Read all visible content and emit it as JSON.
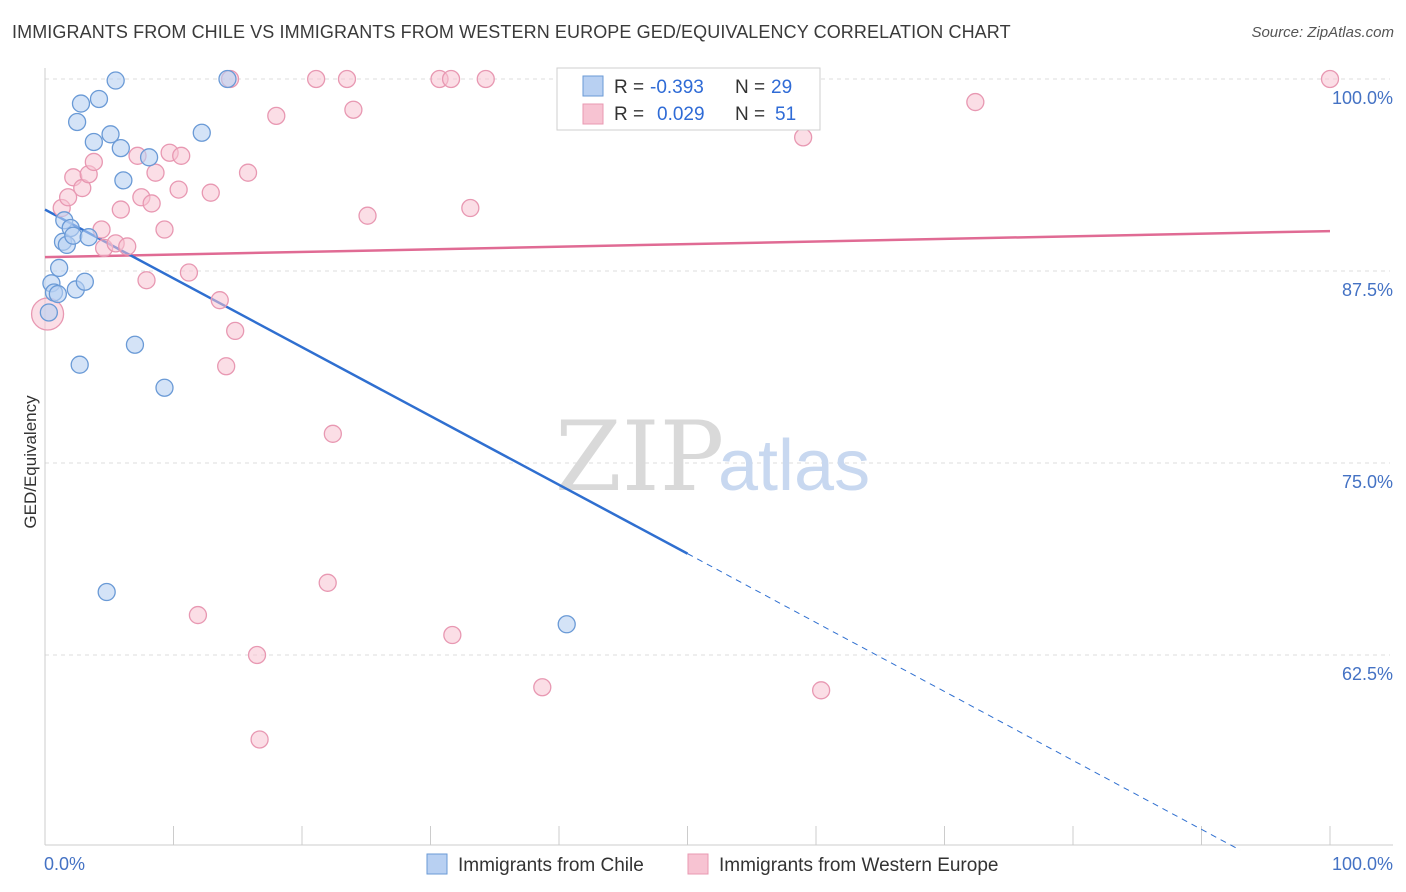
{
  "title": "IMMIGRANTS FROM CHILE VS IMMIGRANTS FROM WESTERN EUROPE GED/EQUIVALENCY CORRELATION CHART",
  "source": "Source: ZipAtlas.com",
  "watermark": {
    "zip": "ZIP",
    "atlas": "atlas"
  },
  "colors": {
    "chile_fill": "#b8d0f2",
    "chile_stroke": "#6a9ad6",
    "chile_line": "#2f6fd0",
    "we_fill": "#f7c3d2",
    "we_stroke": "#e898b2",
    "we_line": "#e06b94",
    "grid": "#dddddd",
    "axis_text": "#4472c4"
  },
  "legend_top": {
    "rows": [
      {
        "r_label": "R = ",
        "r_value": "-0.393",
        "n_label": "N = ",
        "n_value": "29"
      },
      {
        "r_label": "R = ",
        "r_value": "0.029",
        "n_label": "N = ",
        "n_value": "51"
      }
    ]
  },
  "chart_data": {
    "type": "scatter",
    "title": "IMMIGRANTS FROM CHILE VS IMMIGRANTS FROM WESTERN EUROPE GED/EQUIVALENCY CORRELATION CHART",
    "xlabel": "",
    "ylabel": "GED/Equivalency",
    "xlim": [
      0,
      100
    ],
    "ylim": [
      50,
      101
    ],
    "x_tick_labels": [
      "0.0%",
      "100.0%"
    ],
    "y_ticks": [
      100,
      87.5,
      75,
      62.5
    ],
    "y_tick_labels": [
      "100.0%",
      "87.5%",
      "75.0%",
      "62.5%"
    ],
    "grid": true,
    "legend_position": "bottom-center",
    "series": [
      {
        "name": "Immigrants from Chile",
        "points": [
          [
            0.3,
            84.8
          ],
          [
            0.5,
            86.7
          ],
          [
            0.7,
            86.1
          ],
          [
            1.0,
            86.0
          ],
          [
            1.1,
            87.7
          ],
          [
            1.4,
            89.4
          ],
          [
            1.5,
            90.8
          ],
          [
            1.7,
            89.2
          ],
          [
            2.0,
            90.3
          ],
          [
            2.2,
            89.8
          ],
          [
            2.4,
            86.3
          ],
          [
            2.5,
            97.2
          ],
          [
            2.7,
            81.4
          ],
          [
            2.8,
            98.4
          ],
          [
            3.1,
            86.8
          ],
          [
            3.4,
            89.7
          ],
          [
            3.8,
            95.9
          ],
          [
            4.2,
            98.7
          ],
          [
            4.8,
            66.6
          ],
          [
            5.1,
            96.4
          ],
          [
            5.5,
            99.9
          ],
          [
            5.9,
            95.5
          ],
          [
            6.1,
            93.4
          ],
          [
            7.0,
            82.7
          ],
          [
            8.1,
            94.9
          ],
          [
            9.3,
            79.9
          ],
          [
            12.2,
            96.5
          ],
          [
            14.2,
            100.0
          ],
          [
            40.6,
            64.5
          ]
        ],
        "trend": {
          "x": [
            0,
            50
          ],
          "y": [
            91.5,
            69.1
          ],
          "dashed_to": [
            93,
            49.8
          ]
        }
      },
      {
        "name": "Immigrants from Western Europe",
        "points": [
          [
            0.2,
            84.7
          ],
          [
            1.3,
            91.6
          ],
          [
            1.8,
            92.3
          ],
          [
            2.2,
            93.6
          ],
          [
            2.9,
            92.9
          ],
          [
            3.4,
            93.8
          ],
          [
            3.8,
            94.6
          ],
          [
            4.4,
            90.2
          ],
          [
            4.6,
            89.0
          ],
          [
            5.5,
            89.3
          ],
          [
            5.9,
            91.5
          ],
          [
            6.4,
            89.1
          ],
          [
            7.2,
            95.0
          ],
          [
            7.5,
            92.3
          ],
          [
            7.9,
            86.9
          ],
          [
            8.3,
            91.9
          ],
          [
            8.6,
            93.9
          ],
          [
            9.3,
            90.2
          ],
          [
            9.7,
            95.2
          ],
          [
            10.4,
            92.8
          ],
          [
            10.6,
            95.0
          ],
          [
            11.2,
            87.4
          ],
          [
            11.9,
            65.1
          ],
          [
            12.9,
            92.6
          ],
          [
            13.6,
            85.6
          ],
          [
            14.1,
            81.3
          ],
          [
            14.4,
            100.0
          ],
          [
            14.8,
            83.6
          ],
          [
            15.8,
            93.9
          ],
          [
            16.5,
            62.5
          ],
          [
            16.7,
            57.0
          ],
          [
            18.0,
            97.6
          ],
          [
            21.1,
            100.0
          ],
          [
            22.0,
            67.2
          ],
          [
            22.4,
            76.9
          ],
          [
            23.5,
            100.0
          ],
          [
            24.0,
            98.0
          ],
          [
            25.1,
            91.1
          ],
          [
            30.7,
            100.0
          ],
          [
            31.6,
            100.0
          ],
          [
            31.7,
            63.8
          ],
          [
            33.1,
            91.6
          ],
          [
            34.3,
            100.0
          ],
          [
            38.7,
            60.4
          ],
          [
            47.9,
            100.0
          ],
          [
            50.1,
            100.0
          ],
          [
            51.6,
            100.0
          ],
          [
            59.0,
            96.2
          ],
          [
            60.4,
            60.2
          ],
          [
            72.4,
            98.5
          ],
          [
            100.0,
            100.0
          ]
        ],
        "trend": {
          "x": [
            0,
            100
          ],
          "y": [
            88.4,
            90.1
          ]
        }
      }
    ]
  }
}
